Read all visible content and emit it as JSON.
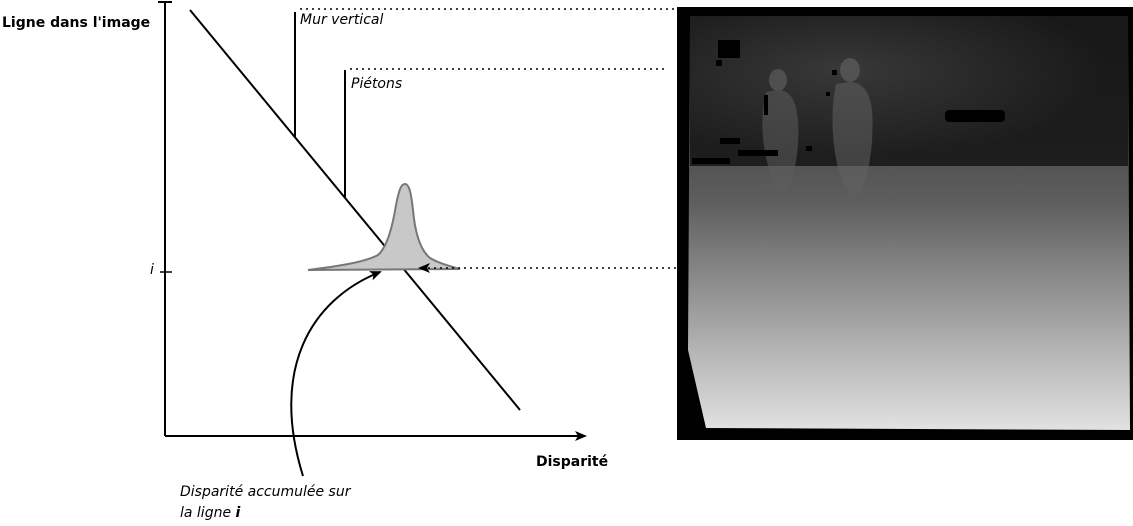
{
  "diagram": {
    "y_axis_label": "Ligne dans l'image",
    "x_axis_label": "Disparité",
    "row_tick_label": "i",
    "wall_label": "Mur vertical",
    "pedestrians_label": "Piétons",
    "caption_line1": "Disparité accumulée sur",
    "caption_line2_prefix": "la ligne ",
    "caption_line2_var": "i"
  },
  "colors": {
    "stroke": "#000000",
    "peak_fill": "#c8c8c8",
    "peak_stroke": "#777777",
    "image_border": "#000000"
  }
}
